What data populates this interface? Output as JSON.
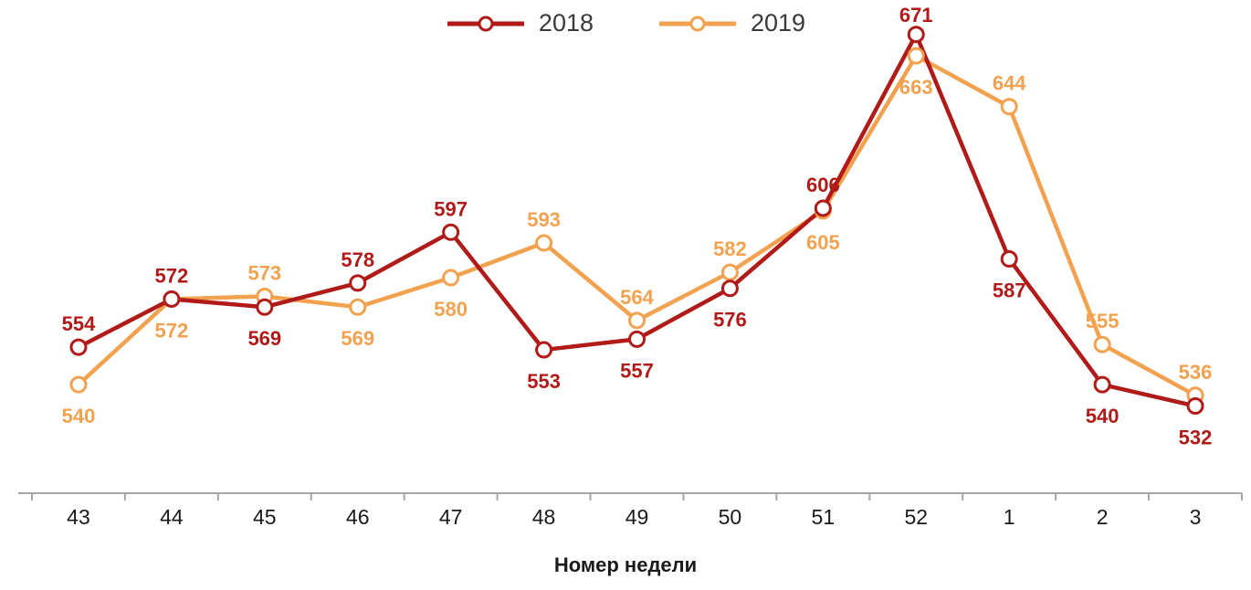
{
  "chart_data": {
    "type": "line",
    "title": "",
    "xlabel": "Номер недели",
    "ylabel": "",
    "categories": [
      "43",
      "44",
      "45",
      "46",
      "47",
      "48",
      "49",
      "50",
      "51",
      "52",
      "1",
      "2",
      "3"
    ],
    "series": [
      {
        "name": "2018",
        "color": "#b01a18",
        "values": [
          554,
          572,
          569,
          578,
          597,
          553,
          557,
          576,
          606,
          671,
          587,
          540,
          532
        ]
      },
      {
        "name": "2019",
        "color": "#f2a24f",
        "values": [
          540,
          572,
          573,
          569,
          580,
          593,
          564,
          582,
          605,
          663,
          644,
          555,
          536
        ]
      }
    ],
    "ylim": [
      525,
      675
    ],
    "grid": false,
    "legend_position": "top",
    "marker": "circle-open",
    "axis_color": "#a6a6a6",
    "tick_label_color": "#1a1a1a"
  }
}
